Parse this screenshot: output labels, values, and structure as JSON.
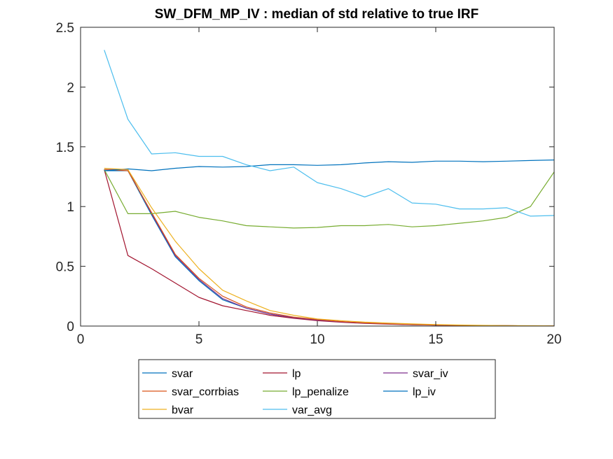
{
  "chart_data": {
    "type": "line",
    "title": "SW_DFM_MP_IV : median of std relative to true IRF",
    "xlabel": "",
    "ylabel": "",
    "xlim": [
      0,
      20
    ],
    "ylim": [
      0,
      2.5
    ],
    "xticks": [
      0,
      5,
      10,
      15,
      20
    ],
    "xtick_labels": [
      "0",
      "5",
      "10",
      "15",
      "20"
    ],
    "yticks": [
      0,
      0.5,
      1,
      1.5,
      2,
      2.5
    ],
    "ytick_labels": [
      "0",
      "0.5",
      "1",
      "1.5",
      "2",
      "2.5"
    ],
    "grid": false,
    "legend_placement": "bottom-outside",
    "legend_columns": 3,
    "x": [
      1,
      2,
      3,
      4,
      5,
      6,
      7,
      8,
      9,
      10,
      11,
      12,
      13,
      14,
      15,
      16,
      17,
      18,
      19,
      20
    ],
    "series": [
      {
        "name": "svar",
        "color": "#0072BD",
        "values": [
          1.3,
          1.3,
          0.93,
          0.58,
          0.38,
          0.22,
          0.15,
          0.1,
          0.07,
          0.05,
          0.035,
          0.025,
          0.018,
          0.012,
          0.009,
          0.006,
          0.004,
          0.003,
          0.002,
          0.001
        ]
      },
      {
        "name": "lp",
        "color": "#A2142F",
        "values": [
          1.31,
          0.59,
          0.48,
          0.36,
          0.24,
          0.17,
          0.13,
          0.09,
          0.065,
          0.045,
          0.032,
          0.022,
          0.016,
          0.011,
          0.008,
          0.005,
          0.004,
          0.003,
          0.002,
          0.001
        ]
      },
      {
        "name": "svar_iv",
        "color": "#7E2F8E",
        "values": [
          1.31,
          1.31,
          0.94,
          0.59,
          0.39,
          0.23,
          0.15,
          0.1,
          0.07,
          0.05,
          0.035,
          0.025,
          0.018,
          0.012,
          0.009,
          0.006,
          0.004,
          0.003,
          0.002,
          0.001
        ]
      },
      {
        "name": "svar_corrbias",
        "color": "#D95319",
        "values": [
          1.31,
          1.3,
          0.95,
          0.6,
          0.4,
          0.25,
          0.16,
          0.11,
          0.075,
          0.055,
          0.038,
          0.027,
          0.019,
          0.013,
          0.009,
          0.006,
          0.004,
          0.003,
          0.002,
          0.001
        ]
      },
      {
        "name": "lp_penalize",
        "color": "#77AC30",
        "values": [
          1.31,
          0.94,
          0.94,
          0.96,
          0.91,
          0.88,
          0.84,
          0.83,
          0.82,
          0.825,
          0.84,
          0.84,
          0.85,
          0.83,
          0.84,
          0.86,
          0.88,
          0.91,
          1.0,
          1.29
        ]
      },
      {
        "name": "lp_iv",
        "color": "#0072BD",
        "values": [
          1.3,
          1.315,
          1.3,
          1.32,
          1.335,
          1.33,
          1.335,
          1.35,
          1.35,
          1.345,
          1.35,
          1.365,
          1.375,
          1.37,
          1.38,
          1.38,
          1.375,
          1.38,
          1.385,
          1.39
        ]
      },
      {
        "name": "bvar",
        "color": "#EDB120",
        "values": [
          1.32,
          1.31,
          0.99,
          0.71,
          0.48,
          0.3,
          0.21,
          0.13,
          0.09,
          0.06,
          0.045,
          0.033,
          0.025,
          0.018,
          0.013,
          0.009,
          0.006,
          0.004,
          0.003,
          0.002
        ]
      },
      {
        "name": "var_avg",
        "color": "#4DBEEE",
        "values": [
          2.31,
          1.73,
          1.44,
          1.45,
          1.42,
          1.42,
          1.35,
          1.3,
          1.33,
          1.2,
          1.15,
          1.08,
          1.15,
          1.03,
          1.02,
          0.98,
          0.98,
          0.99,
          0.92,
          0.925
        ]
      }
    ]
  }
}
